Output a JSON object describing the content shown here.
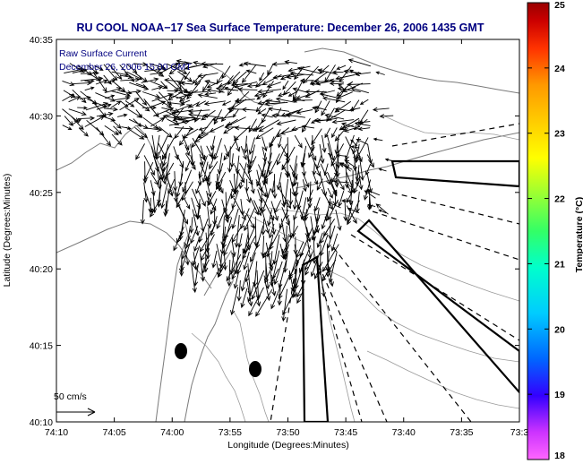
{
  "figure": {
    "title": "RU COOL  NOAA−17  Sea Surface Temperature:  December 26, 2006 1435 GMT",
    "annotation_line1": "Raw Surface Current",
    "annotation_line2": "December 26, 2006 15:00 GMT",
    "scale_label": "50 cm/s",
    "x_axis_label": "Longitude (Degrees:Minutes)",
    "y_axis_label": "Latitude (Degrees:Minutes)",
    "x_ticks": [
      "74:10",
      "74:05",
      "74:00",
      "73:55",
      "73:50",
      "73:45",
      "73:40",
      "73:35",
      "73:3"
    ],
    "y_ticks": [
      "40:35",
      "40:30",
      "40:25",
      "40:20",
      "40:15",
      "40:10"
    ]
  },
  "colorbar": {
    "label": "Temperature (°C)",
    "ticks": [
      "25",
      "24",
      "23",
      "22",
      "21",
      "20",
      "19",
      "18"
    ],
    "range": [
      18,
      25
    ],
    "colors": [
      "#ff66ff",
      "#cc33ff",
      "#3300ff",
      "#0066ff",
      "#00ccff",
      "#00ffcc",
      "#33ff66",
      "#99ff33",
      "#ffff00",
      "#ffcc00",
      "#ff9900",
      "#ff3300",
      "#cc0000",
      "#990000"
    ]
  },
  "colors": {
    "title": "#000080",
    "coast": "#7a7a7a",
    "vectors": "#000000",
    "frame": "#000000"
  }
}
